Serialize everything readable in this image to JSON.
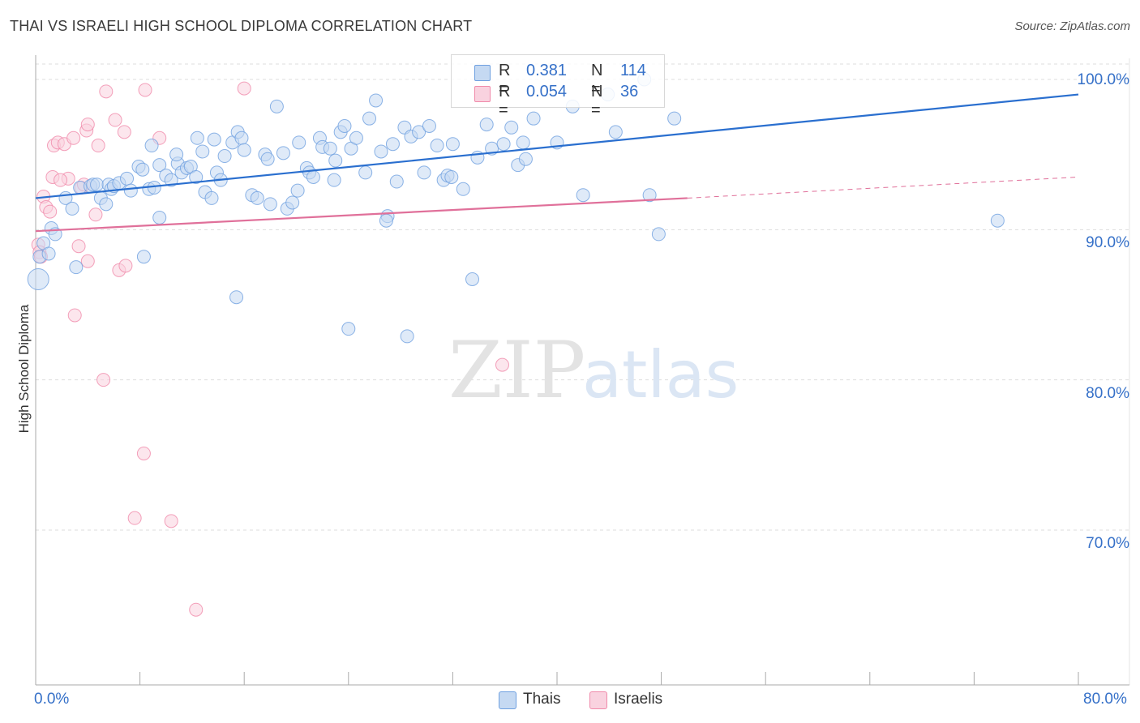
{
  "title": "THAI VS ISRAELI HIGH SCHOOL DIPLOMA CORRELATION CHART",
  "source": "Source: ZipAtlas.com",
  "watermark": {
    "zip": "ZIP",
    "atlas": "atlas"
  },
  "colors": {
    "thais": "#6fa0e0",
    "thais_fill": "#c5d9f2",
    "israelis": "#f08aaa",
    "israelis_fill": "#f9d2df",
    "thais_line": "#2a6fcf",
    "israelis_line": "#e0709a",
    "tick_text": "#3570c8",
    "grid": "#dddddd"
  },
  "legend": {
    "rows": [
      {
        "r_label": "R =",
        "r_value": "0.381",
        "n_label": "N =",
        "n_value": "114"
      },
      {
        "r_label": "R =",
        "r_value": "0.054",
        "n_label": "N =",
        "n_value": "36"
      }
    ]
  },
  "bottom_legend": {
    "thais": "Thais",
    "israelis": "Israelis"
  },
  "chart_data": {
    "type": "scatter",
    "title": "THAI VS ISRAELI HIGH SCHOOL DIPLOMA CORRELATION CHART",
    "xlabel": "",
    "ylabel": "High School Diploma",
    "xlim": [
      0,
      80
    ],
    "ylim": [
      62,
      102
    ],
    "x_tick_labels": [
      "0.0%",
      "80.0%"
    ],
    "y_ticks": [
      70,
      80,
      90,
      100
    ],
    "y_tick_labels": [
      "70.0%",
      "80.0%",
      "90.0%",
      "100.0%"
    ],
    "grid": true,
    "legend_position": "top-center",
    "series": [
      {
        "name": "Thais",
        "r": 0.381,
        "n": 114,
        "trend": {
          "x": [
            0,
            80
          ],
          "y": [
            92.1,
            99.0
          ]
        },
        "points": [
          [
            0.2,
            86.7
          ],
          [
            0.3,
            88.2
          ],
          [
            0.6,
            89.1
          ],
          [
            1.0,
            88.4
          ],
          [
            1.2,
            90.1
          ],
          [
            1.5,
            89.7
          ],
          [
            2.3,
            92.1
          ],
          [
            2.8,
            91.4
          ],
          [
            3.1,
            87.5
          ],
          [
            3.4,
            92.8
          ],
          [
            4.2,
            92.9
          ],
          [
            4.4,
            93.0
          ],
          [
            5.0,
            92.1
          ],
          [
            5.4,
            91.7
          ],
          [
            4.7,
            93.0
          ],
          [
            5.6,
            93.0
          ],
          [
            5.8,
            92.7
          ],
          [
            6.0,
            92.9
          ],
          [
            6.4,
            93.1
          ],
          [
            7.0,
            93.4
          ],
          [
            7.3,
            92.6
          ],
          [
            7.9,
            94.2
          ],
          [
            8.2,
            94.0
          ],
          [
            8.7,
            92.7
          ],
          [
            8.9,
            95.6
          ],
          [
            9.5,
            94.3
          ],
          [
            8.3,
            88.2
          ],
          [
            9.1,
            92.8
          ],
          [
            9.5,
            90.8
          ],
          [
            10.0,
            93.6
          ],
          [
            10.4,
            93.3
          ],
          [
            10.9,
            94.4
          ],
          [
            11.2,
            93.8
          ],
          [
            11.6,
            94.1
          ],
          [
            11.9,
            94.2
          ],
          [
            12.3,
            93.5
          ],
          [
            12.4,
            96.1
          ],
          [
            12.8,
            95.2
          ],
          [
            13.0,
            92.5
          ],
          [
            13.5,
            92.1
          ],
          [
            13.7,
            96.0
          ],
          [
            13.9,
            93.8
          ],
          [
            14.2,
            93.3
          ],
          [
            14.5,
            94.9
          ],
          [
            15.1,
            95.8
          ],
          [
            15.5,
            96.5
          ],
          [
            15.8,
            96.1
          ],
          [
            16.0,
            95.3
          ],
          [
            16.6,
            92.3
          ],
          [
            17.0,
            92.1
          ],
          [
            17.6,
            95.0
          ],
          [
            17.8,
            94.7
          ],
          [
            18.0,
            91.7
          ],
          [
            18.5,
            98.2
          ],
          [
            19.0,
            95.1
          ],
          [
            19.3,
            91.4
          ],
          [
            19.7,
            91.8
          ],
          [
            20.1,
            92.6
          ],
          [
            20.2,
            95.8
          ],
          [
            20.8,
            94.1
          ],
          [
            21.0,
            93.8
          ],
          [
            21.3,
            93.5
          ],
          [
            21.8,
            96.1
          ],
          [
            22.0,
            95.5
          ],
          [
            22.6,
            95.4
          ],
          [
            22.9,
            93.3
          ],
          [
            23.4,
            96.5
          ],
          [
            23.7,
            96.9
          ],
          [
            24.2,
            95.4
          ],
          [
            24.6,
            96.1
          ],
          [
            25.3,
            93.8
          ],
          [
            25.6,
            97.4
          ],
          [
            26.1,
            98.6
          ],
          [
            26.5,
            95.2
          ],
          [
            27.0,
            90.9
          ],
          [
            27.4,
            95.7
          ],
          [
            27.7,
            93.2
          ],
          [
            28.3,
            96.8
          ],
          [
            28.8,
            96.2
          ],
          [
            29.4,
            96.5
          ],
          [
            29.8,
            93.8
          ],
          [
            30.2,
            96.9
          ],
          [
            30.8,
            95.6
          ],
          [
            31.3,
            93.3
          ],
          [
            31.6,
            93.6
          ],
          [
            32.0,
            95.7
          ],
          [
            32.8,
            92.7
          ],
          [
            33.5,
            86.7
          ],
          [
            33.9,
            94.8
          ],
          [
            34.6,
            97.0
          ],
          [
            35.0,
            95.4
          ],
          [
            35.9,
            95.7
          ],
          [
            36.5,
            96.8
          ],
          [
            37.0,
            94.3
          ],
          [
            37.4,
            95.8
          ],
          [
            37.6,
            94.7
          ],
          [
            38.2,
            97.4
          ],
          [
            40.0,
            95.8
          ],
          [
            42.0,
            92.3
          ],
          [
            47.1,
            92.3
          ],
          [
            15.4,
            85.5
          ],
          [
            24.0,
            83.4
          ],
          [
            28.5,
            82.9
          ],
          [
            47.8,
            89.7
          ],
          [
            73.8,
            90.6
          ],
          [
            41.2,
            98.2
          ],
          [
            43.9,
            99.0
          ],
          [
            46.7,
            100.0
          ],
          [
            49.0,
            97.4
          ],
          [
            44.5,
            96.5
          ],
          [
            26.9,
            90.6
          ],
          [
            31.9,
            93.5
          ],
          [
            23.0,
            94.6
          ],
          [
            10.8,
            95.0
          ]
        ]
      },
      {
        "name": "Israelis",
        "r": 0.054,
        "n": 36,
        "trend": {
          "x": [
            0,
            50
          ],
          "y": [
            89.9,
            92.1
          ]
        },
        "trend_dashed": {
          "x": [
            50,
            80
          ],
          "y": [
            92.1,
            93.5
          ]
        },
        "points": [
          [
            0.2,
            89.0
          ],
          [
            0.3,
            88.5
          ],
          [
            0.6,
            92.2
          ],
          [
            0.8,
            91.5
          ],
          [
            1.1,
            91.2
          ],
          [
            1.3,
            93.5
          ],
          [
            1.4,
            95.6
          ],
          [
            1.7,
            95.8
          ],
          [
            2.2,
            95.7
          ],
          [
            2.5,
            93.4
          ],
          [
            2.9,
            96.1
          ],
          [
            3.0,
            84.3
          ],
          [
            3.3,
            88.9
          ],
          [
            3.5,
            92.8
          ],
          [
            3.7,
            93.0
          ],
          [
            4.0,
            87.9
          ],
          [
            3.9,
            96.6
          ],
          [
            4.0,
            97.0
          ],
          [
            4.6,
            91.0
          ],
          [
            4.8,
            95.6
          ],
          [
            5.2,
            80.0
          ],
          [
            5.4,
            99.2
          ],
          [
            6.1,
            97.3
          ],
          [
            6.4,
            87.3
          ],
          [
            6.8,
            96.5
          ],
          [
            6.9,
            87.6
          ],
          [
            7.6,
            70.8
          ],
          [
            8.3,
            75.1
          ],
          [
            8.4,
            99.3
          ],
          [
            9.5,
            96.1
          ],
          [
            10.4,
            70.6
          ],
          [
            12.3,
            64.7
          ],
          [
            16.0,
            99.4
          ],
          [
            35.8,
            81.0
          ],
          [
            0.4,
            88.2
          ],
          [
            1.9,
            93.3
          ]
        ]
      }
    ]
  }
}
